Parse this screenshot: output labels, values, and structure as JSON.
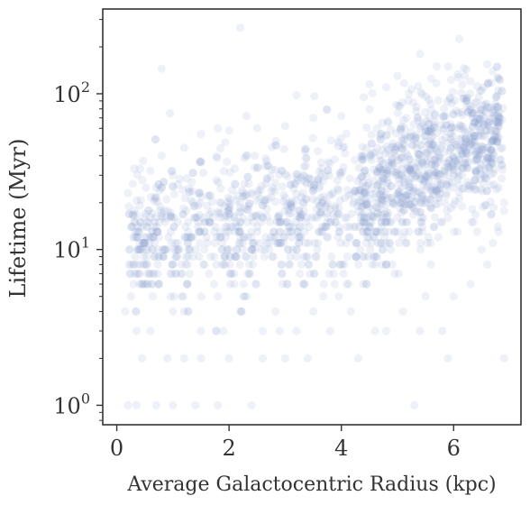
{
  "chart_data": {
    "type": "scatter",
    "xlabel": "Average Galactocentric Radius (kpc)",
    "ylabel": "Lifetime (Myr)",
    "xlim": [
      -0.25,
      7.2
    ],
    "ylim": [
      0.75,
      350
    ],
    "yscale": "log",
    "grid": false,
    "legend": "none",
    "x_ticks": [
      0,
      2,
      4,
      6
    ],
    "x_tick_labels": [
      "0",
      "2",
      "4",
      "6"
    ],
    "y_ticks": [
      1,
      10,
      100
    ],
    "y_tick_base": "10",
    "y_tick_exponents": [
      "0",
      "1",
      "2"
    ],
    "marker_color": "#8fa0cf",
    "marker_alpha": 0.15,
    "axis_color": "#333333",
    "n_points_approx": 1800,
    "points": [
      [
        0.8,
        145
      ],
      [
        2.2,
        265
      ],
      [
        6.1,
        225
      ],
      [
        5.4,
        180
      ],
      [
        6.6,
        155
      ],
      [
        0.95,
        75
      ],
      [
        3.2,
        98
      ],
      [
        4.5,
        115
      ],
      [
        5.0,
        130
      ],
      [
        5.7,
        150
      ],
      [
        6.3,
        120
      ],
      [
        0.15,
        4
      ],
      [
        0.25,
        5
      ],
      [
        0.3,
        6
      ],
      [
        0.4,
        7
      ],
      [
        0.5,
        8
      ],
      [
        0.35,
        3
      ],
      [
        0.6,
        3
      ],
      [
        0.45,
        2
      ],
      [
        0.2,
        1
      ],
      [
        0.35,
        1
      ],
      [
        0.9,
        2
      ],
      [
        1.2,
        2
      ],
      [
        1.5,
        2
      ],
      [
        2.0,
        2
      ],
      [
        2.6,
        2
      ],
      [
        3.0,
        2
      ],
      [
        3.4,
        2
      ],
      [
        4.3,
        2
      ],
      [
        5.9,
        2
      ],
      [
        6.9,
        2
      ],
      [
        5.3,
        1
      ],
      [
        1.4,
        1
      ],
      [
        1.8,
        1
      ],
      [
        2.4,
        1
      ],
      [
        0.7,
        1
      ],
      [
        1.0,
        1
      ],
      [
        0.5,
        12
      ],
      [
        0.6,
        16
      ],
      [
        0.7,
        25
      ],
      [
        0.8,
        40
      ],
      [
        0.6,
        32
      ],
      [
        1.0,
        30
      ],
      [
        1.2,
        45
      ],
      [
        1.5,
        55
      ],
      [
        1.8,
        60
      ],
      [
        2.0,
        58
      ],
      [
        2.5,
        60
      ],
      [
        3.0,
        62
      ],
      [
        3.5,
        70
      ],
      [
        4.0,
        72
      ],
      [
        4.4,
        95
      ],
      [
        4.8,
        110
      ],
      [
        5.2,
        100
      ],
      [
        5.6,
        125
      ],
      [
        5.9,
        150
      ],
      [
        6.2,
        130
      ],
      [
        6.5,
        105
      ],
      [
        6.8,
        25
      ],
      [
        6.9,
        20
      ],
      [
        6.7,
        11
      ],
      [
        6.6,
        8
      ],
      [
        6.8,
        13
      ],
      [
        6.5,
        10
      ],
      [
        4.6,
        3
      ],
      [
        4.8,
        3
      ],
      [
        5.1,
        4
      ],
      [
        5.4,
        3
      ],
      [
        5.5,
        5
      ],
      [
        5.8,
        3
      ],
      [
        6.0,
        5
      ],
      [
        6.3,
        6
      ],
      [
        5.6,
        8
      ],
      [
        3.8,
        3
      ],
      [
        3.5,
        4
      ],
      [
        3.2,
        3
      ],
      [
        2.9,
        3
      ],
      [
        2.6,
        3
      ],
      [
        2.2,
        4
      ],
      [
        1.9,
        3
      ],
      [
        1.5,
        3
      ],
      [
        1.2,
        4
      ]
    ]
  }
}
